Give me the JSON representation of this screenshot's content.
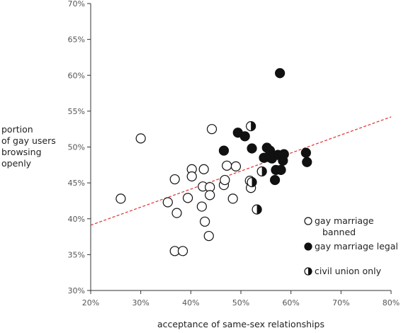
{
  "chart_data": {
    "type": "scatter",
    "xlabel": "acceptance of same-sex relationships",
    "ylabel_lines": [
      "portion",
      "of gay users",
      "browsing",
      "openly"
    ],
    "xlim": [
      0.2,
      0.8
    ],
    "ylim": [
      0.3,
      0.7
    ],
    "x_ticks": [
      0.2,
      0.3,
      0.4,
      0.5,
      0.6,
      0.7,
      0.8
    ],
    "x_tick_labels": [
      "20%",
      "30%",
      "40%",
      "50%",
      "60%",
      "70%",
      "80%"
    ],
    "y_ticks": [
      0.3,
      0.35,
      0.4,
      0.45,
      0.5,
      0.55,
      0.6,
      0.65,
      0.7
    ],
    "y_tick_labels": [
      "30%",
      "35%",
      "40%",
      "45%",
      "50%",
      "55%",
      "60%",
      "65%",
      "70%"
    ],
    "grid": false,
    "trendline": {
      "style": "dashed",
      "color": "#e03030",
      "points": [
        [
          0.2,
          0.391
        ],
        [
          0.8,
          0.542
        ]
      ]
    },
    "legend": {
      "placement": "right",
      "entries": [
        {
          "marker": "open",
          "label_lines": [
            "gay marriage",
            "banned"
          ]
        },
        {
          "marker": "filled",
          "label_lines": [
            "gay marriage legal"
          ]
        },
        {
          "marker": "half",
          "label_lines": [
            "civil union only"
          ]
        }
      ]
    },
    "series": [
      {
        "name": "gay marriage banned",
        "marker": "open",
        "points": [
          [
            0.26,
            0.428
          ],
          [
            0.3,
            0.512
          ],
          [
            0.354,
            0.423
          ],
          [
            0.368,
            0.455
          ],
          [
            0.372,
            0.408
          ],
          [
            0.368,
            0.355
          ],
          [
            0.384,
            0.355
          ],
          [
            0.394,
            0.429
          ],
          [
            0.402,
            0.469
          ],
          [
            0.402,
            0.459
          ],
          [
            0.422,
            0.417
          ],
          [
            0.424,
            0.445
          ],
          [
            0.426,
            0.469
          ],
          [
            0.428,
            0.396
          ],
          [
            0.436,
            0.376
          ],
          [
            0.438,
            0.444
          ],
          [
            0.438,
            0.433
          ],
          [
            0.442,
            0.525
          ],
          [
            0.466,
            0.447
          ],
          [
            0.468,
            0.454
          ],
          [
            0.472,
            0.474
          ],
          [
            0.484,
            0.428
          ],
          [
            0.49,
            0.473
          ],
          [
            0.518,
            0.453
          ],
          [
            0.52,
            0.443
          ]
        ]
      },
      {
        "name": "gay marriage legal",
        "marker": "filled",
        "points": [
          [
            0.466,
            0.495
          ],
          [
            0.494,
            0.52
          ],
          [
            0.508,
            0.515
          ],
          [
            0.522,
            0.498
          ],
          [
            0.546,
            0.485
          ],
          [
            0.552,
            0.499
          ],
          [
            0.556,
            0.486
          ],
          [
            0.558,
            0.495
          ],
          [
            0.562,
            0.484
          ],
          [
            0.568,
            0.454
          ],
          [
            0.57,
            0.468
          ],
          [
            0.574,
            0.489
          ],
          [
            0.578,
            0.603
          ],
          [
            0.58,
            0.468
          ],
          [
            0.584,
            0.481
          ],
          [
            0.586,
            0.49
          ],
          [
            0.63,
            0.492
          ],
          [
            0.632,
            0.479
          ]
        ]
      },
      {
        "name": "civil union only",
        "marker": "half",
        "points": [
          [
            0.52,
            0.529
          ],
          [
            0.522,
            0.451
          ],
          [
            0.532,
            0.413
          ],
          [
            0.542,
            0.466
          ]
        ]
      }
    ]
  }
}
